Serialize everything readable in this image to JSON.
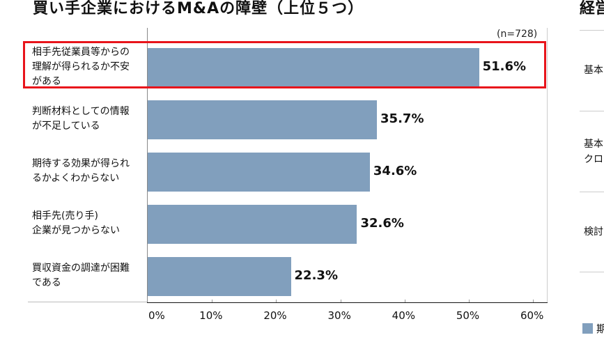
{
  "title": "買い手企業におけるM&Aの障壁（上位５つ）",
  "right_panel": {
    "title": "経営",
    "rows": [
      "基本",
      "基本\nクロ",
      "検討"
    ],
    "legend": "期"
  },
  "colors": {
    "bar": "#819FBD",
    "highlight": "#E8141B"
  },
  "chart_data": {
    "type": "bar",
    "orientation": "horizontal",
    "title": "買い手企業におけるM&Aの障壁（上位５つ）",
    "note": "(n=728)",
    "categories": [
      "相手先従業員等からの理解が得られるか不安がある",
      "判断材料としての情報が不足している",
      "期待する効果が得られるかよくわからない",
      "相手先(売り手)企業が見つからない",
      "買収資金の調達が困難である"
    ],
    "category_lines": [
      [
        "相手先従業員等からの",
        "理解が得られるか不安",
        "がある"
      ],
      [
        "判断材料としての情報",
        "が不足している"
      ],
      [
        "期待する効果が得られ",
        "るかよくわからない"
      ],
      [
        "相手先(売り手)",
        "企業が見つからない"
      ],
      [
        "買収資金の調達が困難",
        "である"
      ]
    ],
    "values": [
      51.6,
      35.7,
      34.6,
      32.6,
      22.3
    ],
    "value_labels": [
      "51.6%",
      "35.7%",
      "34.6%",
      "32.6%",
      "22.3%"
    ],
    "highlighted_index": 0,
    "xlabel": "",
    "ylabel": "",
    "xlim": [
      0,
      60
    ],
    "x_ticks": [
      "0%",
      "10%",
      "20%",
      "30%",
      "40%",
      "50%",
      "60%"
    ],
    "grid": false
  }
}
